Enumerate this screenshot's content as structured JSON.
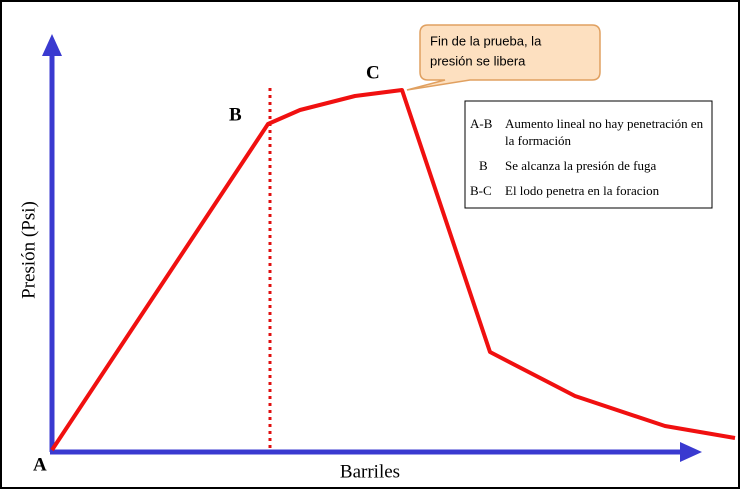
{
  "axes": {
    "y_label": "Presión (Psi)",
    "x_label": "Barriles"
  },
  "points": {
    "a": "A",
    "b": "B",
    "c": "C"
  },
  "callout": {
    "lines": [
      "Fin de la prueba, la",
      "presión se libera"
    ]
  },
  "legend": [
    {
      "key": "A-B",
      "lines": [
        "Aumento lineal no hay penetración en",
        "la formación"
      ]
    },
    {
      "key": "B",
      "lines": [
        "Se alcanza la presión de fuga"
      ]
    },
    {
      "key": "B-C",
      "lines": [
        "El lodo penetra en la foracion"
      ]
    }
  ]
}
